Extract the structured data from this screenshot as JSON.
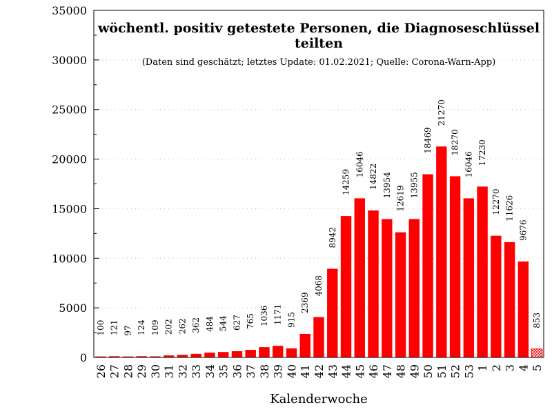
{
  "chart_data": {
    "type": "bar",
    "title": "wöchentl. positiv getestete Personen, die Diagnoseschlüssel teilten",
    "subtitle": "(Daten sind geschätzt; letztes Update: 01.02.2021; Quelle: Corona-Warn-App)",
    "xlabel": "Kalenderwoche",
    "ylabel": "",
    "ylim": [
      0,
      35000
    ],
    "yticks": [
      0,
      5000,
      10000,
      15000,
      20000,
      25000,
      30000,
      35000
    ],
    "grid": true,
    "categories": [
      "26",
      "27",
      "28",
      "29",
      "30",
      "31",
      "32",
      "33",
      "34",
      "35",
      "36",
      "37",
      "38",
      "39",
      "40",
      "41",
      "42",
      "43",
      "44",
      "45",
      "46",
      "47",
      "48",
      "49",
      "50",
      "51",
      "52",
      "53",
      "1",
      "2",
      "3",
      "4",
      "5"
    ],
    "values": [
      100,
      121,
      97,
      124,
      109,
      202,
      262,
      362,
      484,
      544,
      627,
      765,
      1036,
      1171,
      915,
      2369,
      4068,
      8942,
      14259,
      16046,
      14822,
      13954,
      12619,
      13955,
      18469,
      21270,
      18270,
      16046,
      17230,
      12270,
      11626,
      9676,
      853
    ],
    "value_labels": [
      "100",
      "121",
      "97",
      "124",
      "109",
      "202",
      "262",
      "362",
      "484",
      "544",
      "627",
      "765",
      "1036",
      "1171",
      "915",
      "2369",
      "4068",
      "8942",
      "14259",
      "16046",
      "14822",
      "13954",
      "12619",
      "13955",
      "18469",
      "21270",
      "18270",
      "16046",
      "17230",
      "12270",
      "11626",
      "9676",
      "853"
    ],
    "estimated": [
      false,
      false,
      false,
      false,
      false,
      false,
      false,
      false,
      false,
      false,
      false,
      false,
      false,
      false,
      false,
      false,
      false,
      false,
      false,
      false,
      false,
      false,
      false,
      false,
      false,
      false,
      false,
      false,
      false,
      false,
      false,
      false,
      true
    ],
    "colors": {
      "bar": "#ff0000",
      "estimated_bar": "#ff9999",
      "grid": "#b8b8b8"
    }
  }
}
